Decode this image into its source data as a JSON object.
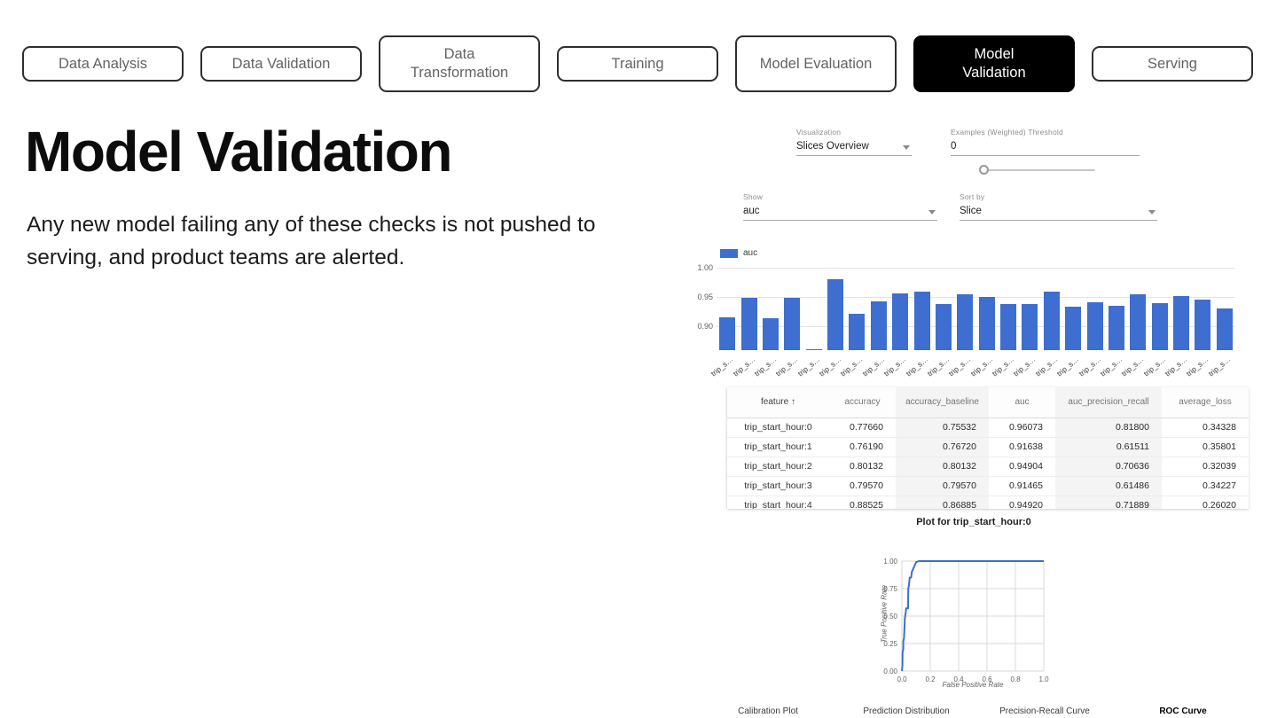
{
  "nav": {
    "items": [
      {
        "label": "Data Analysis",
        "selected": false
      },
      {
        "label": "Data Validation",
        "selected": false
      },
      {
        "label": "Data\nTransformation",
        "selected": false
      },
      {
        "label": "Training",
        "selected": false
      },
      {
        "label": "Model Evaluation",
        "selected": false
      },
      {
        "label": "Model\nValidation",
        "selected": true
      },
      {
        "label": "Serving",
        "selected": false
      }
    ]
  },
  "headline": {
    "title": "Model Validation",
    "description": "Any new model failing any of these checks is not pushed to serving, and product teams are alerted."
  },
  "controls": {
    "visualization": {
      "label": "Visualization",
      "value": "Slices Overview"
    },
    "threshold": {
      "label": "Examples (Weighted) Threshold",
      "value": "0"
    },
    "show": {
      "label": "Show",
      "value": "auc"
    },
    "sort_by": {
      "label": "Sort by",
      "value": "Slice"
    }
  },
  "colors": {
    "bar_blue": "#3d6ed0",
    "roc_line": "#3d6ed0",
    "selected_nav_bg": "#000000"
  },
  "chart_data": [
    {
      "type": "bar",
      "title": "",
      "legend": [
        "auc"
      ],
      "legend_position": "top-left",
      "grid": true,
      "ylim": [
        0.859,
        1.008
      ],
      "y_ticks": [
        "1.00",
        "0.95",
        "0.90"
      ],
      "y_tick_values": [
        1.0,
        0.95,
        0.9
      ],
      "categories": [
        "trip_s…",
        "trip_s…",
        "trip_s…",
        "trip_s…",
        "trip_s…",
        "trip_s…",
        "trip_s…",
        "trip_s…",
        "trip_s…",
        "trip_s…",
        "trip_s…",
        "trip_s…",
        "trip_s…",
        "trip_s…",
        "trip_s…",
        "trip_s…",
        "trip_s…",
        "trip_s…",
        "trip_s…",
        "trip_s…",
        "trip_s…",
        "trip_s…",
        "trip_s…",
        "trip_s…"
      ],
      "values": [
        0.916,
        0.948,
        0.913,
        0.948,
        0.861,
        0.98,
        0.922,
        0.943,
        0.957,
        0.96,
        0.938,
        0.955,
        0.95,
        0.938,
        0.938,
        0.96,
        0.933,
        0.941,
        0.935,
        0.955,
        0.94,
        0.952,
        0.946,
        0.93
      ]
    },
    {
      "type": "line",
      "title": "Plot for trip_start_hour:0",
      "xlabel": "False Positive Rate",
      "ylabel": "True Positive Rate",
      "xlim": [
        0,
        1
      ],
      "ylim": [
        0,
        1
      ],
      "x_ticks": [
        "0.0",
        "0.2",
        "0.4",
        "0.6",
        "0.8",
        "1.0"
      ],
      "y_ticks": [
        "0.00",
        "0.25",
        "0.50",
        "0.75",
        "1.00"
      ],
      "grid": true,
      "points": [
        [
          0,
          0
        ],
        [
          0.004,
          0.05
        ],
        [
          0.005,
          0.17
        ],
        [
          0.01,
          0.2
        ],
        [
          0.01,
          0.27
        ],
        [
          0.015,
          0.3
        ],
        [
          0.02,
          0.44
        ],
        [
          0.02,
          0.47
        ],
        [
          0.028,
          0.54
        ],
        [
          0.03,
          0.57
        ],
        [
          0.044,
          0.57
        ],
        [
          0.045,
          0.75
        ],
        [
          0.05,
          0.78
        ],
        [
          0.055,
          0.85
        ],
        [
          0.065,
          0.85
        ],
        [
          0.07,
          0.9
        ],
        [
          0.08,
          0.93
        ],
        [
          0.09,
          0.96
        ],
        [
          0.1,
          0.99
        ],
        [
          0.12,
          1.0
        ],
        [
          1.0,
          1.0
        ]
      ]
    }
  ],
  "table": {
    "headers": [
      "feature ↑",
      "accuracy",
      "accuracy_baseline",
      "auc",
      "auc_precision_recall",
      "average_loss"
    ],
    "striped_columns": [
      2,
      4
    ],
    "rows": [
      [
        "trip_start_hour:0",
        "0.77660",
        "0.75532",
        "0.96073",
        "0.81800",
        "0.34328"
      ],
      [
        "trip_start_hour:1",
        "0.76190",
        "0.76720",
        "0.91638",
        "0.61511",
        "0.35801"
      ],
      [
        "trip_start_hour:2",
        "0.80132",
        "0.80132",
        "0.94904",
        "0.70636",
        "0.32039"
      ],
      [
        "trip_start_hour:3",
        "0.79570",
        "0.79570",
        "0.91465",
        "0.61486",
        "0.34227"
      ],
      [
        "trip_start_hour:4",
        "0.88525",
        "0.86885",
        "0.94920",
        "0.71889",
        "0.26020"
      ]
    ]
  },
  "plot_section": {
    "title": "Plot for trip_start_hour:0",
    "xlabel": "False Positive Rate",
    "ylabel": "True Positive Rate",
    "tabs": [
      "Calibration Plot",
      "Prediction Distribution",
      "Precision-Recall Curve",
      "ROC Curve"
    ],
    "active_tab": "ROC Curve"
  }
}
